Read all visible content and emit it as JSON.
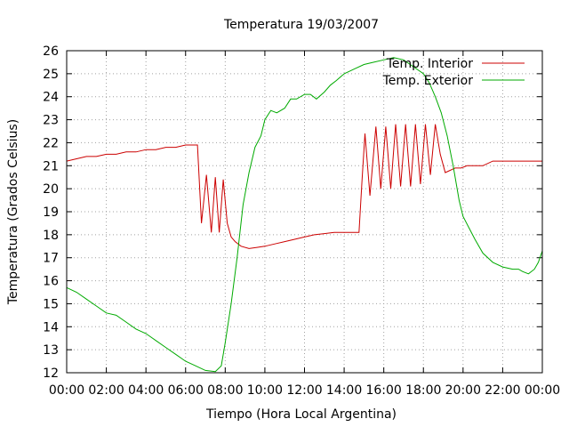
{
  "chart_data": {
    "type": "line",
    "title": "Temperatura 19/03/2007",
    "xlabel": "Tiempo (Hora Local Argentina)",
    "ylabel": "Temperatura (Grados Celsius)",
    "xlim": [
      0,
      24
    ],
    "ylim": [
      12,
      26
    ],
    "x_ticks": [
      0,
      2,
      4,
      6,
      8,
      10,
      12,
      14,
      16,
      18,
      20,
      22,
      24
    ],
    "x_tick_labels": [
      "00:00",
      "02:00",
      "04:00",
      "06:00",
      "08:00",
      "10:00",
      "12:00",
      "14:00",
      "16:00",
      "18:00",
      "20:00",
      "22:00",
      "00:00"
    ],
    "y_ticks": [
      12,
      13,
      14,
      15,
      16,
      17,
      18,
      19,
      20,
      21,
      22,
      23,
      24,
      25,
      26
    ],
    "grid": true,
    "legend_position": "top-right",
    "series": [
      {
        "name": "Temp. Interior",
        "color": "#cc0000",
        "x": [
          0,
          0.5,
          1,
          1.5,
          2,
          2.5,
          3,
          3.5,
          4,
          4.5,
          5,
          5.5,
          6,
          6.5,
          6.6,
          6.8,
          7.05,
          7.3,
          7.5,
          7.7,
          7.9,
          8.1,
          8.3,
          8.5,
          8.8,
          9.2,
          9.6,
          10,
          10.5,
          11,
          11.5,
          12,
          12.5,
          13,
          13.5,
          14,
          14.5,
          14.75,
          14.9,
          15.05,
          15.3,
          15.6,
          15.85,
          16.1,
          16.35,
          16.6,
          16.85,
          17.1,
          17.35,
          17.6,
          17.85,
          18.1,
          18.35,
          18.6,
          18.85,
          19.1,
          19.35,
          19.6,
          19.9,
          20.2,
          20.5,
          21,
          21.5,
          22,
          22.5,
          23,
          23.5,
          24
        ],
        "y": [
          21.2,
          21.3,
          21.4,
          21.4,
          21.5,
          21.5,
          21.6,
          21.6,
          21.7,
          21.7,
          21.8,
          21.8,
          21.9,
          21.9,
          21.9,
          18.5,
          20.6,
          18.1,
          20.5,
          18.1,
          20.4,
          18.5,
          17.9,
          17.7,
          17.5,
          17.4,
          17.45,
          17.5,
          17.6,
          17.7,
          17.8,
          17.9,
          18,
          18.05,
          18.1,
          18.1,
          18.1,
          18.1,
          20.3,
          22.4,
          19.7,
          22.7,
          20,
          22.7,
          20,
          22.8,
          20.1,
          22.8,
          20.1,
          22.8,
          20.2,
          22.8,
          20.6,
          22.8,
          21.5,
          20.7,
          20.8,
          20.9,
          20.9,
          21,
          21,
          21,
          21.2,
          21.2,
          21.2,
          21.2,
          21.2,
          21.2
        ]
      },
      {
        "name": "Temp. Exterior",
        "color": "#00aa00",
        "x": [
          0,
          0.5,
          1,
          1.5,
          2,
          2.5,
          3,
          3.5,
          4,
          4.5,
          5,
          5.5,
          6,
          6.5,
          7,
          7.5,
          7.8,
          8,
          8.3,
          8.6,
          8.9,
          9.2,
          9.5,
          9.8,
          10,
          10.3,
          10.6,
          11,
          11.3,
          11.6,
          12,
          12.3,
          12.6,
          13,
          13.3,
          13.6,
          14,
          14.5,
          15,
          15.5,
          16,
          16.5,
          17,
          17.5,
          18,
          18.3,
          18.6,
          18.9,
          19.2,
          19.5,
          19.8,
          20,
          20.3,
          20.6,
          21,
          21.5,
          22,
          22.5,
          22.8,
          23,
          23.3,
          23.6,
          23.8,
          24
        ],
        "y": [
          15.7,
          15.5,
          15.2,
          14.9,
          14.6,
          14.5,
          14.2,
          13.9,
          13.7,
          13.4,
          13.1,
          12.8,
          12.5,
          12.3,
          12.1,
          12.05,
          12.3,
          13.3,
          15,
          17,
          19.3,
          20.7,
          21.8,
          22.3,
          23,
          23.4,
          23.3,
          23.5,
          23.9,
          23.9,
          24.1,
          24.1,
          23.9,
          24.2,
          24.5,
          24.7,
          25,
          25.2,
          25.4,
          25.5,
          25.6,
          25.7,
          25.6,
          25.3,
          25,
          24.6,
          24,
          23.3,
          22.3,
          21,
          19.5,
          18.8,
          18.3,
          17.8,
          17.2,
          16.8,
          16.6,
          16.5,
          16.5,
          16.4,
          16.3,
          16.5,
          16.8,
          17.3
        ]
      }
    ]
  }
}
